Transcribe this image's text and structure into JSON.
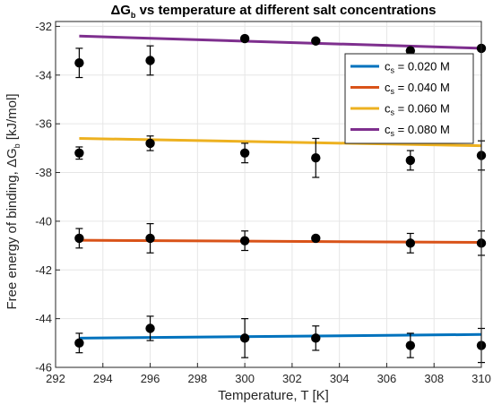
{
  "chart_data": {
    "type": "scatter",
    "title": {
      "main": "ΔG",
      "sub": "b",
      "rest": " vs temperature at different salt concentrations"
    },
    "xlabel": "Temperature, T [K]",
    "ylabel": {
      "main": "Free energy of binding, ΔG",
      "sub": "b",
      "rest": " [kJ/mol]"
    },
    "xlim": [
      292,
      310
    ],
    "ylim": [
      -46,
      -31.8
    ],
    "xticks": [
      "292",
      "294",
      "296",
      "298",
      "300",
      "302",
      "304",
      "306",
      "308",
      "310"
    ],
    "yticks": [
      "-46",
      "-44",
      "-42",
      "-40",
      "-38",
      "-36",
      "-34",
      "-32"
    ],
    "grid": true,
    "legend_position": "top-right",
    "series": [
      {
        "name": "0.020",
        "legend": {
          "c": "c",
          "s": "s",
          "rest": " = 0.020  M"
        },
        "color": "#0072BD",
        "fit": [
          [
            293,
            -44.8
          ],
          [
            310,
            -44.65
          ]
        ],
        "points": [
          {
            "x": 293,
            "y": -45.0,
            "err": 0.4
          },
          {
            "x": 296,
            "y": -44.4,
            "err": 0.5
          },
          {
            "x": 300,
            "y": -44.8,
            "err": 0.8
          },
          {
            "x": 303,
            "y": -44.8,
            "err": 0.5
          },
          {
            "x": 307,
            "y": -45.1,
            "err": 0.5
          },
          {
            "x": 310,
            "y": -45.1,
            "err": 0.7
          }
        ]
      },
      {
        "name": "0.040",
        "legend": {
          "c": "c",
          "s": "s",
          "rest": " = 0.040  M"
        },
        "color": "#D95319",
        "fit": [
          [
            293,
            -40.78
          ],
          [
            310,
            -40.87
          ]
        ],
        "points": [
          {
            "x": 293,
            "y": -40.7,
            "err": 0.4
          },
          {
            "x": 296,
            "y": -40.7,
            "err": 0.6
          },
          {
            "x": 300,
            "y": -40.8,
            "err": 0.4
          },
          {
            "x": 303,
            "y": -40.7,
            "err": 0.05
          },
          {
            "x": 307,
            "y": -40.9,
            "err": 0.4
          },
          {
            "x": 310,
            "y": -40.9,
            "err": 0.5
          }
        ]
      },
      {
        "name": "0.060",
        "legend": {
          "c": "c",
          "s": "s",
          "rest": " = 0.060  M"
        },
        "color": "#EDB120",
        "fit": [
          [
            293,
            -36.6
          ],
          [
            310,
            -36.9
          ]
        ],
        "points": [
          {
            "x": 293,
            "y": -37.2,
            "err": 0.25
          },
          {
            "x": 296,
            "y": -36.8,
            "err": 0.3
          },
          {
            "x": 300,
            "y": -37.2,
            "err": 0.4
          },
          {
            "x": 303,
            "y": -37.4,
            "err": 0.8
          },
          {
            "x": 307,
            "y": -37.5,
            "err": 0.4
          },
          {
            "x": 310,
            "y": -37.3,
            "err": 0.6
          }
        ]
      },
      {
        "name": "0.080",
        "legend": {
          "c": "c",
          "s": "s",
          "rest": " = 0.080  M"
        },
        "color": "#7E2F8E",
        "fit": [
          [
            293,
            -32.4
          ],
          [
            310,
            -32.9
          ]
        ],
        "points": [
          {
            "x": 293,
            "y": -33.5,
            "err": 0.6
          },
          {
            "x": 296,
            "y": -33.4,
            "err": 0.6
          },
          {
            "x": 300,
            "y": -32.5,
            "err": 0.05
          },
          {
            "x": 303,
            "y": -32.6,
            "err": 0.05
          },
          {
            "x": 307,
            "y": -33.0,
            "err": 0.05
          },
          {
            "x": 310,
            "y": -32.9,
            "err": 0.05
          }
        ]
      }
    ]
  }
}
